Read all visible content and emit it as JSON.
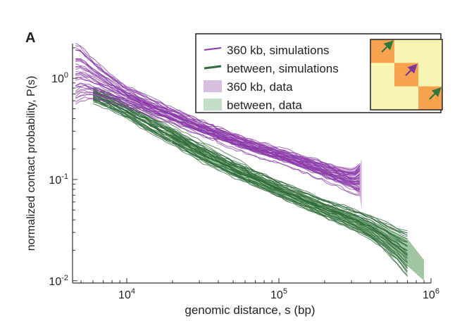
{
  "panel_label": "A",
  "chart_data": {
    "type": "line",
    "xscale": "log",
    "yscale": "log",
    "xlabel": "genomic distance, s (bp)",
    "ylabel": "normalized contact probability, P(s)",
    "xlim": [
      4400,
      1000000
    ],
    "ylim": [
      0.0095,
      2.2
    ],
    "x_ticks": [
      {
        "value": 10000,
        "base": "10",
        "exp": "4"
      },
      {
        "value": 100000,
        "base": "10",
        "exp": "5"
      },
      {
        "value": 1000000,
        "base": "10",
        "exp": "6"
      }
    ],
    "y_ticks": [
      {
        "value": 0.01,
        "base": "10",
        "exp": "-2"
      },
      {
        "value": 0.1,
        "base": "10",
        "exp": "-1"
      },
      {
        "value": 1,
        "base": "10",
        "exp": "0"
      }
    ],
    "legend_position": "top-right",
    "series": [
      {
        "name": "360 kb, simulations",
        "kind": "lines",
        "color": "#8a3aa8",
        "x": [
          4600,
          5000,
          6000,
          8000,
          10000,
          15000,
          20000,
          30000,
          50000,
          80000,
          100000,
          150000,
          200000,
          260000,
          310000,
          340000
        ],
        "median": [
          1.15,
          1.1,
          0.95,
          0.78,
          0.66,
          0.5,
          0.42,
          0.32,
          0.24,
          0.19,
          0.17,
          0.14,
          0.12,
          0.1,
          0.095,
          0.1
        ],
        "low": [
          0.55,
          0.6,
          0.62,
          0.58,
          0.52,
          0.42,
          0.36,
          0.28,
          0.21,
          0.165,
          0.15,
          0.12,
          0.1,
          0.085,
          0.075,
          0.07
        ],
        "high": [
          2.2,
          2.1,
          1.55,
          1.05,
          0.82,
          0.6,
          0.5,
          0.38,
          0.28,
          0.22,
          0.2,
          0.165,
          0.145,
          0.125,
          0.12,
          0.14
        ]
      },
      {
        "name": "between, simulations",
        "kind": "lines",
        "color": "#2f6b3a",
        "x": [
          6000,
          8000,
          10000,
          15000,
          20000,
          30000,
          50000,
          80000,
          100000,
          150000,
          200000,
          300000,
          400000,
          500000,
          600000,
          700000
        ],
        "median": [
          0.7,
          0.58,
          0.48,
          0.34,
          0.27,
          0.19,
          0.13,
          0.095,
          0.082,
          0.063,
          0.053,
          0.042,
          0.034,
          0.028,
          0.023,
          0.018
        ],
        "low": [
          0.6,
          0.5,
          0.42,
          0.29,
          0.23,
          0.16,
          0.11,
          0.08,
          0.068,
          0.052,
          0.043,
          0.033,
          0.026,
          0.02,
          0.015,
          0.011
        ],
        "high": [
          0.8,
          0.66,
          0.56,
          0.4,
          0.32,
          0.23,
          0.155,
          0.112,
          0.097,
          0.075,
          0.064,
          0.052,
          0.045,
          0.038,
          0.034,
          0.032
        ]
      },
      {
        "name": "360 kb, data",
        "kind": "band",
        "color": "#cfa9d6",
        "x": [
          10000,
          20000,
          50000,
          100000,
          200000,
          300000,
          340000,
          350000
        ],
        "lower": [
          0.62,
          0.38,
          0.22,
          0.155,
          0.11,
          0.085,
          0.07,
          0.05
        ],
        "upper": [
          0.72,
          0.45,
          0.27,
          0.19,
          0.14,
          0.13,
          0.14,
          0.16
        ]
      },
      {
        "name": "between, data",
        "kind": "band",
        "color": "#9bc39d",
        "x": [
          20000,
          30000,
          50000,
          100000,
          200000,
          300000,
          500000,
          700000,
          900000
        ],
        "lower": [
          0.23,
          0.165,
          0.11,
          0.07,
          0.045,
          0.034,
          0.022,
          0.014,
          0.01
        ],
        "upper": [
          0.3,
          0.21,
          0.14,
          0.09,
          0.058,
          0.046,
          0.033,
          0.026,
          0.016
        ]
      }
    ],
    "legend": [
      {
        "label": "360 kb, simulations",
        "swatch": "line",
        "color": "#8a3aa8"
      },
      {
        "label": "between, simulations",
        "swatch": "line",
        "color": "#2f6b3a"
      },
      {
        "label": "360 kb, data",
        "swatch": "box",
        "color": "#d7bfdf"
      },
      {
        "label": "between, data",
        "swatch": "box",
        "color": "#c3e0c6"
      }
    ],
    "inset": {
      "background": "#f8f5b4",
      "block_color": "#f7a24f",
      "arrow_colors": [
        "#2f7a3a",
        "#7b3a9a",
        "#2f7a3a"
      ]
    }
  }
}
